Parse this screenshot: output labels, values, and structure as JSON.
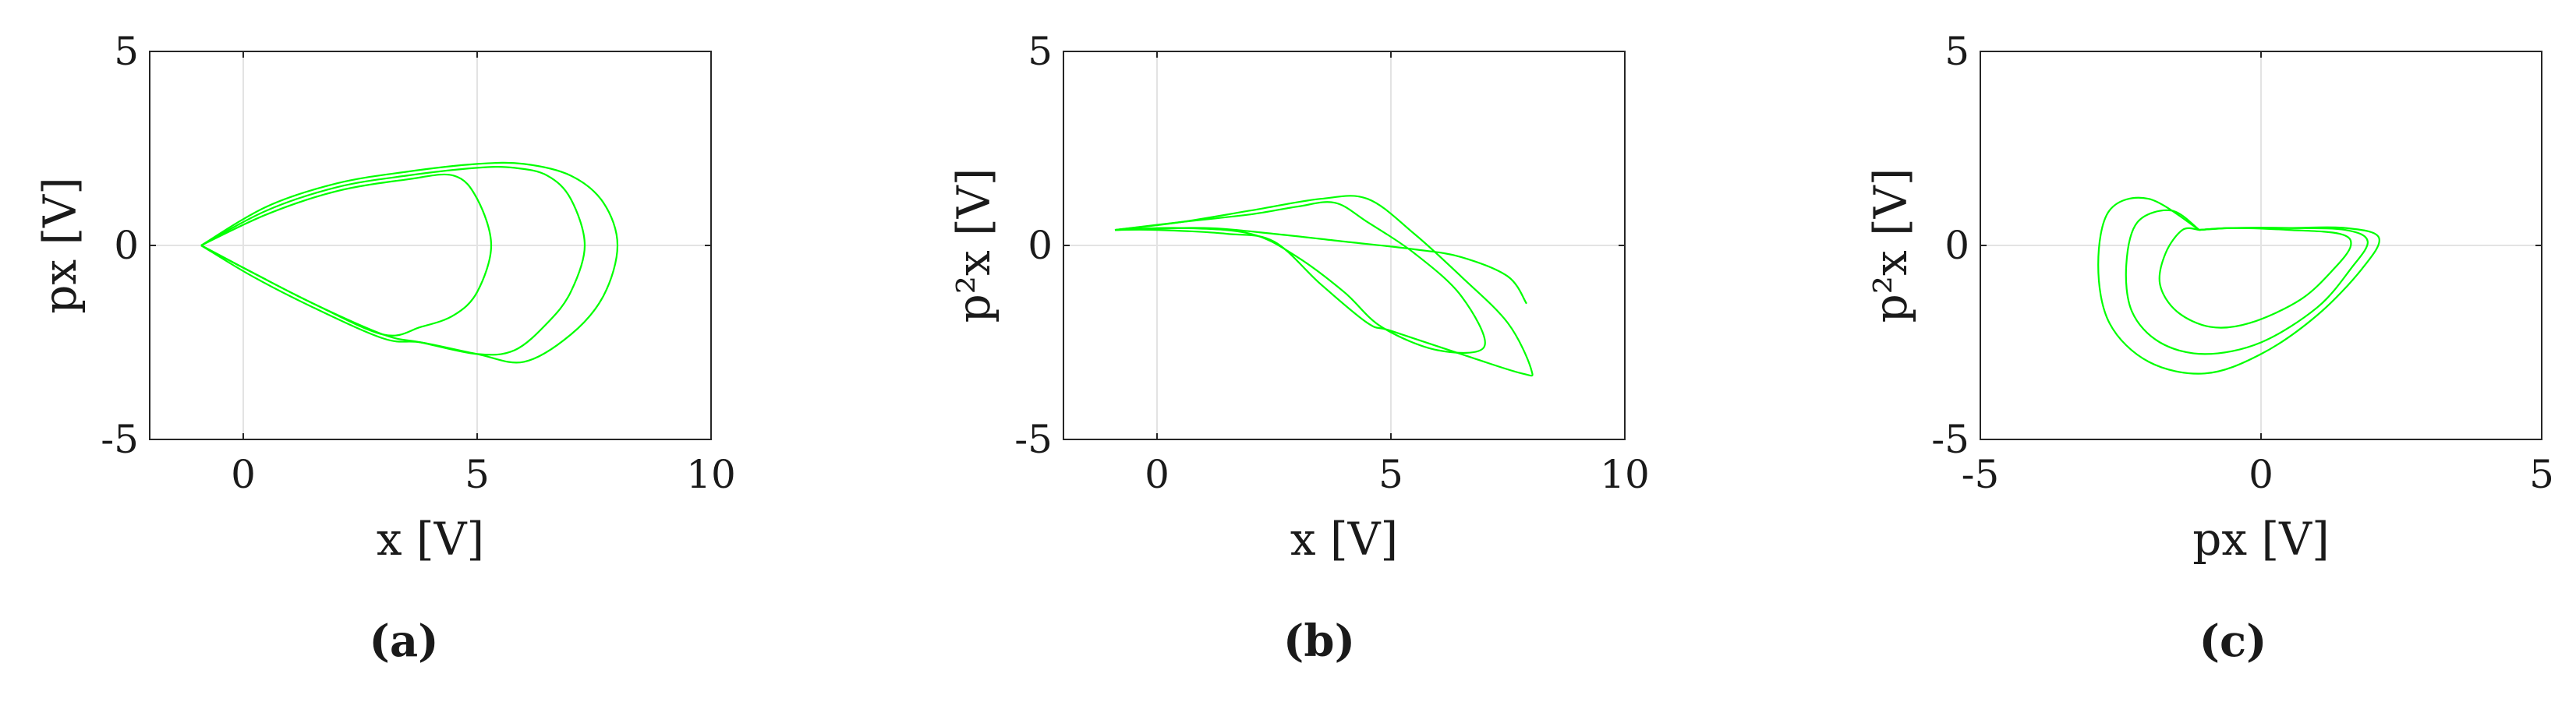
{
  "chart_data": [
    {
      "type": "line",
      "panel_label": "(a)",
      "xlabel": "x [V]",
      "ylabel": "px [V]",
      "xlim": [
        -2,
        10
      ],
      "ylim": [
        -5,
        5
      ],
      "xticks": [
        0,
        5,
        10
      ],
      "yticks": [
        -5,
        0,
        5
      ],
      "xtick_labels": [
        "0",
        "5",
        "10"
      ],
      "ytick_labels": [
        "-5",
        "0",
        "5"
      ],
      "grid": true,
      "color": "#00ff00",
      "series": [
        {
          "x": [
            -0.9,
            0.5,
            2.0,
            3.5,
            5.0,
            5.8,
            6.5,
            7.0,
            7.3,
            7.0,
            6.5,
            5.8,
            5.0,
            3.8,
            3.0,
            1.5,
            0.2,
            -0.9
          ],
          "y": [
            0.0,
            0.9,
            1.5,
            1.8,
            2.0,
            2.0,
            1.8,
            1.2,
            0.0,
            -1.2,
            -2.0,
            -2.7,
            -2.8,
            -2.5,
            -2.3,
            -1.5,
            -0.7,
            0.0
          ]
        },
        {
          "x": [
            -0.9,
            0.5,
            2.0,
            3.5,
            5.0,
            6.0,
            7.0,
            7.7,
            8.0,
            7.7,
            7.0,
            6.0,
            5.0,
            3.8,
            3.0,
            1.5,
            0.2,
            -0.9
          ],
          "y": [
            0.0,
            1.0,
            1.6,
            1.9,
            2.1,
            2.1,
            1.8,
            1.1,
            0.0,
            -1.3,
            -2.3,
            -3.0,
            -2.8,
            -2.5,
            -2.4,
            -1.6,
            -0.8,
            0.0
          ]
        },
        {
          "x": [
            -0.9,
            0.5,
            2.0,
            3.5,
            4.5,
            5.0,
            5.3,
            5.0,
            4.5,
            3.8,
            3.0,
            1.5,
            0.2,
            -0.9
          ],
          "y": [
            0.0,
            0.8,
            1.4,
            1.7,
            1.8,
            1.2,
            0.0,
            -1.2,
            -1.8,
            -2.1,
            -2.3,
            -1.5,
            -0.7,
            0.0
          ]
        }
      ]
    },
    {
      "type": "line",
      "panel_label": "(b)",
      "xlabel": "x [V]",
      "ylabel": "p²x [V]",
      "xlim": [
        -2,
        10
      ],
      "ylim": [
        -5,
        5
      ],
      "xticks": [
        0,
        5,
        10
      ],
      "yticks": [
        -5,
        0,
        5
      ],
      "xtick_labels": [
        "0",
        "5",
        "10"
      ],
      "ytick_labels": [
        "-5",
        "0",
        "5"
      ],
      "grid": true,
      "color": "#00ff00",
      "series": [
        {
          "x": [
            -0.9,
            0.5,
            2.0,
            3.5,
            4.5,
            5.5,
            6.5,
            7.5,
            8.0,
            7.8,
            6.5,
            5.0,
            4.5,
            3.5,
            2.5,
            1.5,
            0.0,
            -0.9
          ],
          "y": [
            0.4,
            0.6,
            0.9,
            1.2,
            1.2,
            0.3,
            -0.8,
            -2.0,
            -3.2,
            -3.3,
            -2.8,
            -2.2,
            -2.0,
            -1.0,
            0.1,
            0.3,
            0.4,
            0.4
          ]
        },
        {
          "x": [
            -0.9,
            0.5,
            2.0,
            3.0,
            3.8,
            4.5,
            5.5,
            6.5,
            7.0,
            6.0,
            4.8,
            4.0,
            3.0,
            2.0,
            0.5,
            -0.9
          ],
          "y": [
            0.4,
            0.6,
            0.8,
            1.0,
            1.1,
            0.6,
            -0.2,
            -1.3,
            -2.6,
            -2.7,
            -2.1,
            -1.2,
            -0.3,
            0.3,
            0.45,
            0.4
          ]
        },
        {
          "x": [
            -0.9,
            1.0,
            2.5,
            4.0,
            5.5,
            6.5,
            7.5,
            7.9
          ],
          "y": [
            0.4,
            0.45,
            0.3,
            0.1,
            -0.1,
            -0.3,
            -0.8,
            -1.5
          ]
        }
      ]
    },
    {
      "type": "line",
      "panel_label": "(c)",
      "xlabel": "px [V]",
      "ylabel": "p²x [V]",
      "xlim": [
        -5,
        5
      ],
      "ylim": [
        -5,
        5
      ],
      "xticks": [
        -5,
        0,
        5
      ],
      "yticks": [
        -5,
        0,
        5
      ],
      "xtick_labels": [
        "-5",
        "0",
        "5"
      ],
      "ytick_labels": [
        "-5",
        "0",
        "5"
      ],
      "grid": true,
      "color": "#00ff00",
      "series": [
        {
          "x": [
            -1.1,
            -0.5,
            0.5,
            1.5,
            2.1,
            1.8,
            1.0,
            0.0,
            -1.0,
            -2.0,
            -2.7,
            -2.9,
            -2.7,
            -2.0,
            -1.1
          ],
          "y": [
            0.4,
            0.45,
            0.45,
            0.45,
            0.2,
            -0.6,
            -1.8,
            -2.8,
            -3.3,
            -3.0,
            -2.0,
            -0.5,
            0.9,
            1.2,
            0.4
          ]
        },
        {
          "x": [
            -1.1,
            -0.5,
            0.5,
            1.5,
            1.9,
            1.6,
            1.0,
            0.0,
            -1.0,
            -1.8,
            -2.3,
            -2.4,
            -2.2,
            -1.6,
            -1.1
          ],
          "y": [
            0.4,
            0.45,
            0.45,
            0.4,
            0.1,
            -0.6,
            -1.6,
            -2.5,
            -2.8,
            -2.5,
            -1.7,
            -0.5,
            0.6,
            0.9,
            0.4
          ]
        },
        {
          "x": [
            -1.1,
            -0.5,
            0.5,
            1.4,
            1.6,
            1.3,
            0.7,
            -0.2,
            -0.9,
            -1.5,
            -1.8,
            -1.7,
            -1.4,
            -1.1
          ],
          "y": [
            0.4,
            0.45,
            0.4,
            0.3,
            0.0,
            -0.6,
            -1.4,
            -2.0,
            -2.1,
            -1.7,
            -1.0,
            -0.2,
            0.4,
            0.4
          ]
        }
      ]
    }
  ]
}
